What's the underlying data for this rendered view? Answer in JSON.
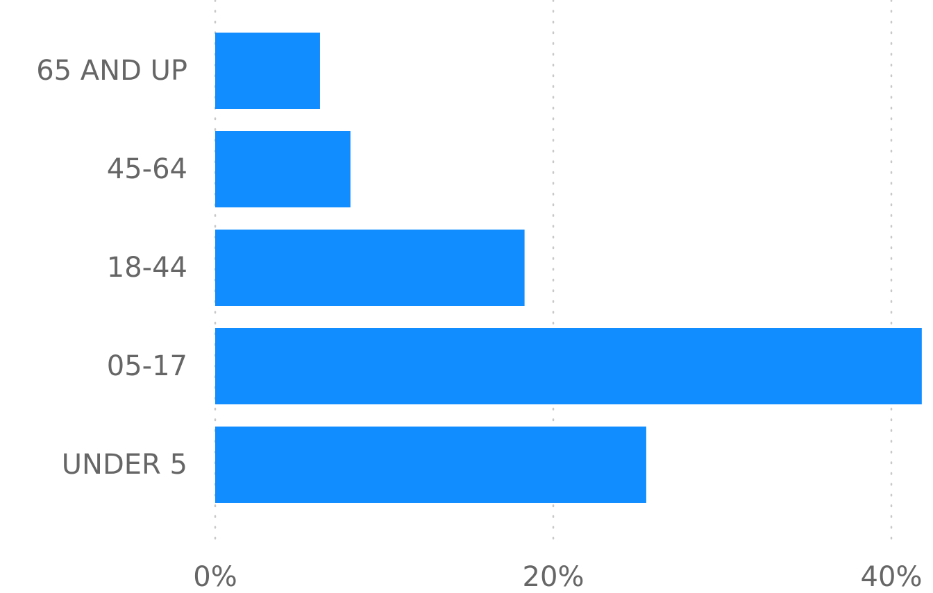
{
  "chart_data": {
    "type": "bar",
    "orientation": "horizontal",
    "title": "",
    "xlabel": "",
    "ylabel": "",
    "categories": [
      "UNDER 5",
      "05-17",
      "18-44",
      "45-64",
      "65 AND UP"
    ],
    "values": [
      25.5,
      41.8,
      18.3,
      8.0,
      6.2
    ],
    "x_ticks": [
      "0%",
      "20%",
      "40%"
    ],
    "x_tick_values": [
      0,
      20,
      40
    ],
    "xlim": [
      0,
      42
    ],
    "grid": "vertical dotted",
    "legend": "none",
    "bar_color": "#118dff",
    "grid_color": "#c8c8c8",
    "label_color": "#666666"
  }
}
